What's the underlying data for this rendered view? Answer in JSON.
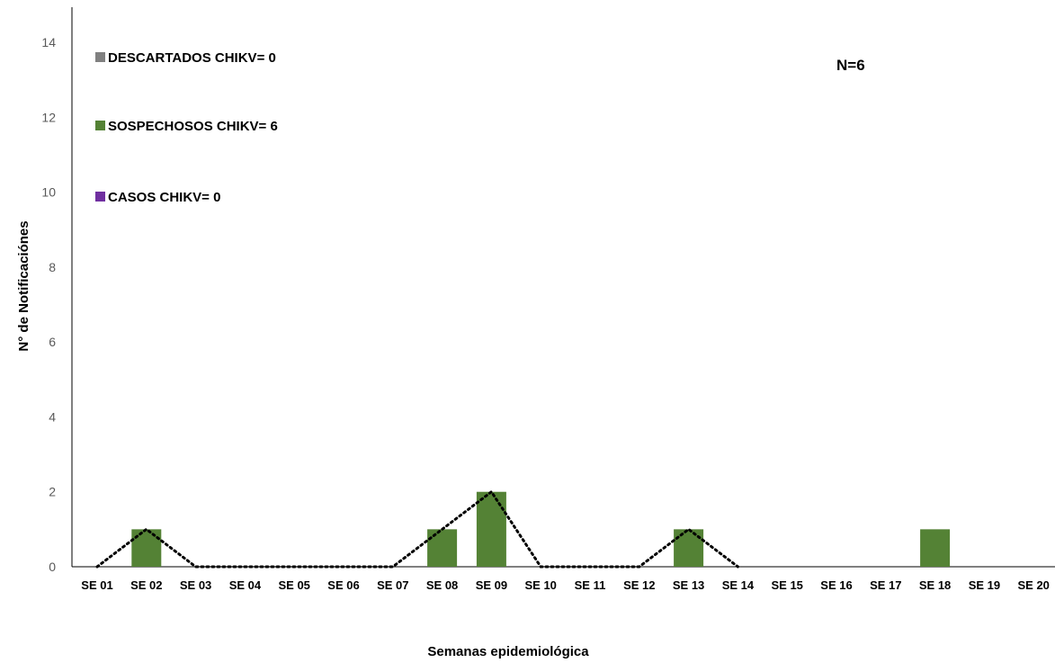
{
  "chart_data": {
    "type": "bar",
    "categories": [
      "SE 01",
      "SE 02",
      "SE 03",
      "SE 04",
      "SE 05",
      "SE 06",
      "SE 07",
      "SE 08",
      "SE 09",
      "SE 10",
      "SE 11",
      "SE 12",
      "SE 13",
      "SE 14",
      "SE 15",
      "SE 16",
      "SE 17",
      "SE 18",
      "SE 19",
      "SE 20"
    ],
    "series": [
      {
        "name": "DESCARTADOS CHIKV= 0",
        "color": "#808080",
        "values": [
          0,
          0,
          0,
          0,
          0,
          0,
          0,
          0,
          0,
          0,
          0,
          0,
          0,
          0,
          0,
          0,
          0,
          0,
          0,
          0
        ]
      },
      {
        "name": "SOSPECHOSOS CHIKV= 6",
        "color": "#548235",
        "values": [
          0,
          1,
          0,
          0,
          0,
          0,
          0,
          1,
          2,
          0,
          0,
          0,
          1,
          0,
          0,
          0,
          0,
          1,
          0,
          0
        ]
      },
      {
        "name": "CASOS CHIKV= 0",
        "color": "#7030A0",
        "values": [
          0,
          0,
          0,
          0,
          0,
          0,
          0,
          0,
          0,
          0,
          0,
          0,
          0,
          0,
          0,
          0,
          0,
          0,
          0,
          0
        ]
      }
    ],
    "trend_line": {
      "style": "dotted",
      "color": "#000000",
      "values": [
        0,
        1,
        0,
        0,
        0,
        0,
        0,
        1,
        2,
        0,
        0,
        0,
        1,
        0
      ]
    },
    "annotation": "N=6",
    "xlabel": "Semanas epidemiológica",
    "ylabel": "N° de Notificaciónes",
    "ylim": [
      0,
      14
    ],
    "yticks": [
      0,
      2,
      4,
      6,
      8,
      10,
      12,
      14
    ],
    "grid": false,
    "legend_position": "top-left"
  }
}
